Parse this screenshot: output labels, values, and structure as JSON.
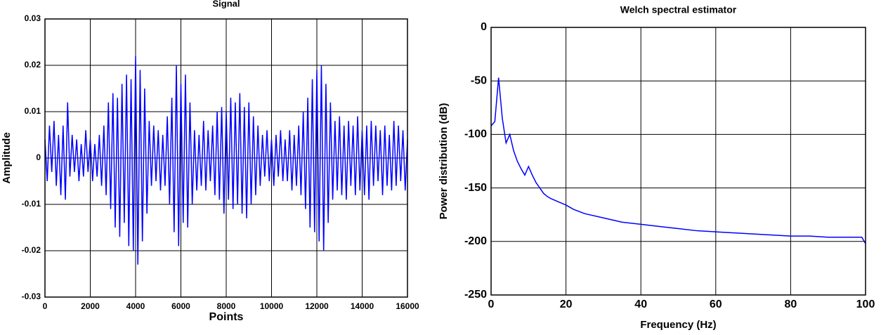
{
  "chart_data": [
    {
      "type": "line",
      "title": "Signal",
      "xlabel": "Points",
      "ylabel": "Amplitude",
      "color": "#0000ff",
      "grid": true,
      "xlim": [
        0,
        16000
      ],
      "xticks": [
        0,
        2000,
        4000,
        6000,
        8000,
        10000,
        12000,
        14000,
        16000
      ],
      "ylim": [
        -0.03,
        0.03
      ],
      "yticks": [
        -0.03,
        -0.02,
        -0.01,
        0,
        0.01,
        0.02,
        0.03
      ],
      "x": [
        0,
        100,
        200,
        300,
        400,
        500,
        600,
        700,
        800,
        900,
        1000,
        1100,
        1200,
        1300,
        1400,
        1500,
        1600,
        1700,
        1800,
        1900,
        2000,
        2100,
        2200,
        2300,
        2400,
        2500,
        2600,
        2700,
        2800,
        2900,
        3000,
        3100,
        3200,
        3300,
        3400,
        3500,
        3600,
        3700,
        3800,
        3900,
        4000,
        4100,
        4200,
        4300,
        4400,
        4500,
        4600,
        4700,
        4800,
        4900,
        5000,
        5100,
        5200,
        5300,
        5400,
        5500,
        5600,
        5700,
        5800,
        5900,
        6000,
        6100,
        6200,
        6300,
        6400,
        6500,
        6600,
        6700,
        6800,
        6900,
        7000,
        7100,
        7200,
        7300,
        7400,
        7500,
        7600,
        7700,
        7800,
        7900,
        8000,
        8100,
        8200,
        8300,
        8400,
        8500,
        8600,
        8700,
        8800,
        8900,
        9000,
        9100,
        9200,
        9300,
        9400,
        9500,
        9600,
        9700,
        9800,
        9900,
        10000,
        10100,
        10200,
        10300,
        10400,
        10500,
        10600,
        10700,
        10800,
        10900,
        11000,
        11100,
        11200,
        11300,
        11400,
        11500,
        11600,
        11700,
        11800,
        11900,
        12000,
        12100,
        12200,
        12300,
        12400,
        12500,
        12600,
        12700,
        12800,
        12900,
        13000,
        13100,
        13200,
        13300,
        13400,
        13500,
        13600,
        13700,
        13800,
        13900,
        14000,
        14100,
        14200,
        14300,
        14400,
        14500,
        14600,
        14700,
        14800,
        14900,
        15000,
        15100,
        15200,
        15300,
        15400,
        15500,
        15600,
        15700,
        15800,
        15900,
        16000
      ],
      "values": [
        0.004,
        -0.005,
        0.007,
        -0.003,
        0.008,
        -0.006,
        0.005,
        -0.008,
        0.007,
        -0.009,
        0.012,
        -0.004,
        0.005,
        -0.003,
        0.004,
        -0.005,
        0.003,
        -0.004,
        0.006,
        -0.003,
        0.004,
        -0.005,
        0.003,
        -0.004,
        0.005,
        -0.006,
        0.007,
        -0.008,
        0.012,
        -0.011,
        0.014,
        -0.015,
        0.013,
        -0.017,
        0.016,
        -0.014,
        0.018,
        -0.019,
        0.017,
        -0.02,
        0.022,
        -0.023,
        0.019,
        -0.018,
        0.015,
        -0.012,
        0.008,
        -0.006,
        0.007,
        -0.005,
        0.006,
        -0.007,
        0.005,
        -0.006,
        0.009,
        -0.01,
        0.013,
        -0.016,
        0.02,
        -0.019,
        0.016,
        -0.014,
        0.018,
        -0.015,
        0.012,
        -0.01,
        0.006,
        -0.007,
        0.005,
        -0.006,
        0.008,
        -0.007,
        0.006,
        -0.005,
        0.007,
        -0.008,
        0.01,
        -0.009,
        0.011,
        -0.012,
        0.01,
        -0.009,
        0.013,
        -0.011,
        0.012,
        -0.01,
        0.014,
        -0.012,
        0.011,
        -0.013,
        0.012,
        -0.01,
        0.009,
        -0.008,
        0.007,
        -0.006,
        0.005,
        -0.004,
        0.006,
        -0.005,
        0.004,
        -0.006,
        0.005,
        -0.004,
        0.006,
        -0.005,
        0.004,
        -0.005,
        0.006,
        -0.007,
        0.005,
        -0.006,
        0.007,
        -0.008,
        0.01,
        -0.011,
        0.013,
        -0.015,
        0.017,
        -0.016,
        0.019,
        -0.018,
        0.02,
        -0.02,
        0.016,
        -0.014,
        0.012,
        -0.009,
        0.008,
        -0.007,
        0.009,
        -0.008,
        0.007,
        -0.009,
        0.008,
        -0.006,
        0.007,
        -0.008,
        0.009,
        -0.007,
        0.006,
        -0.008,
        0.007,
        -0.009,
        0.008,
        -0.006,
        0.007,
        -0.005,
        0.006,
        -0.008,
        0.007,
        -0.006,
        0.005,
        -0.007,
        0.008,
        -0.006,
        0.007,
        -0.005,
        0.006,
        -0.007,
        0.004
      ]
    },
    {
      "type": "line",
      "title": "Welch spectral estimator",
      "xlabel": "Frequency (Hz)",
      "ylabel": "Power distribution (dB)",
      "color": "#0000ff",
      "grid": true,
      "xlim": [
        0,
        100
      ],
      "xticks": [
        0,
        20,
        40,
        60,
        80,
        100
      ],
      "ylim": [
        -250,
        0
      ],
      "yticks": [
        -250,
        -200,
        -150,
        -100,
        -50,
        0
      ],
      "x": [
        0,
        1,
        2,
        3,
        4,
        5,
        6,
        7,
        8,
        9,
        10,
        11,
        12,
        13,
        14,
        15,
        16,
        18,
        20,
        22,
        25,
        30,
        35,
        40,
        45,
        50,
        55,
        60,
        65,
        70,
        75,
        80,
        85,
        90,
        95,
        99,
        100
      ],
      "values": [
        -92,
        -88,
        -47,
        -85,
        -108,
        -100,
        -115,
        -125,
        -132,
        -138,
        -130,
        -138,
        -145,
        -150,
        -155,
        -158,
        -160,
        -163,
        -166,
        -170,
        -174,
        -178,
        -182,
        -184,
        -186,
        -188,
        -190,
        -191,
        -192,
        -193,
        -194,
        -195,
        -195,
        -196,
        -196,
        -196,
        -202
      ]
    }
  ]
}
